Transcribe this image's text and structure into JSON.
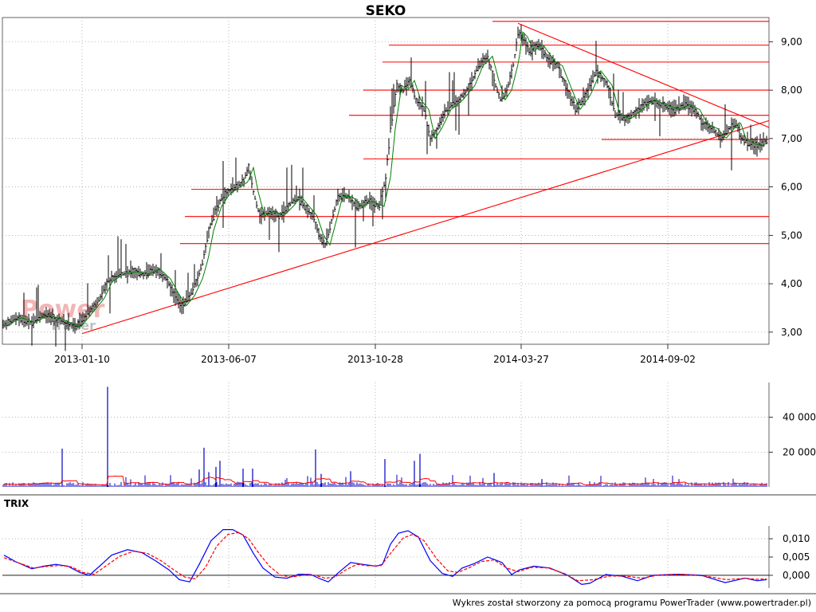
{
  "chart_data": [
    {
      "type": "line",
      "subtype": "price-bars",
      "title": "SEKO",
      "x_tick_labels": [
        "2013-01-10",
        "2013-06-07",
        "2013-10-28",
        "2014-03-27",
        "2014-09-02"
      ],
      "y_tick_labels": [
        "3,00",
        "4,00",
        "5,00",
        "6,00",
        "7,00",
        "8,00",
        "9,00"
      ],
      "ylim": [
        2.75,
        9.5
      ],
      "grid": true,
      "price_path": [
        [
          0,
          3.1
        ],
        [
          20,
          3.3
        ],
        [
          38,
          3.2
        ],
        [
          55,
          3.35
        ],
        [
          75,
          3.25
        ],
        [
          95,
          3.1
        ],
        [
          105,
          3.3
        ],
        [
          115,
          3.5
        ],
        [
          125,
          3.7
        ],
        [
          135,
          4.05
        ],
        [
          150,
          4.2
        ],
        [
          165,
          4.25
        ],
        [
          180,
          4.2
        ],
        [
          195,
          4.3
        ],
        [
          208,
          4.1
        ],
        [
          218,
          3.8
        ],
        [
          228,
          3.55
        ],
        [
          238,
          3.75
        ],
        [
          248,
          4.1
        ],
        [
          255,
          4.5
        ],
        [
          262,
          5.1
        ],
        [
          272,
          5.6
        ],
        [
          282,
          5.85
        ],
        [
          295,
          6.0
        ],
        [
          305,
          6.1
        ],
        [
          312,
          6.4
        ],
        [
          318,
          5.9
        ],
        [
          326,
          5.4
        ],
        [
          338,
          5.5
        ],
        [
          350,
          5.4
        ],
        [
          362,
          5.6
        ],
        [
          372,
          5.8
        ],
        [
          382,
          5.6
        ],
        [
          392,
          5.4
        ],
        [
          400,
          5.0
        ],
        [
          408,
          4.8
        ],
        [
          416,
          5.3
        ],
        [
          424,
          5.8
        ],
        [
          436,
          5.8
        ],
        [
          448,
          5.6
        ],
        [
          462,
          5.7
        ],
        [
          476,
          5.6
        ],
        [
          484,
          6.2
        ],
        [
          490,
          7.2
        ],
        [
          498,
          8.1
        ],
        [
          506,
          8.0
        ],
        [
          514,
          8.2
        ],
        [
          522,
          7.8
        ],
        [
          532,
          7.6
        ],
        [
          540,
          7.0
        ],
        [
          548,
          7.2
        ],
        [
          560,
          7.6
        ],
        [
          575,
          7.8
        ],
        [
          590,
          8.1
        ],
        [
          600,
          8.5
        ],
        [
          612,
          8.7
        ],
        [
          620,
          8.2
        ],
        [
          628,
          7.8
        ],
        [
          636,
          8.0
        ],
        [
          645,
          8.6
        ],
        [
          650,
          9.2
        ],
        [
          656,
          9.1
        ],
        [
          664,
          8.8
        ],
        [
          675,
          8.95
        ],
        [
          690,
          8.6
        ],
        [
          700,
          8.5
        ],
        [
          712,
          8.0
        ],
        [
          722,
          7.6
        ],
        [
          735,
          7.9
        ],
        [
          748,
          8.4
        ],
        [
          762,
          8.1
        ],
        [
          772,
          7.5
        ],
        [
          785,
          7.4
        ],
        [
          800,
          7.6
        ],
        [
          815,
          7.8
        ],
        [
          830,
          7.7
        ],
        [
          845,
          7.6
        ],
        [
          860,
          7.7
        ],
        [
          872,
          7.6
        ],
        [
          882,
          7.3
        ],
        [
          895,
          7.2
        ],
        [
          905,
          7.0
        ],
        [
          915,
          7.2
        ],
        [
          923,
          7.35
        ],
        [
          930,
          7.0
        ],
        [
          940,
          6.9
        ],
        [
          950,
          6.85
        ],
        [
          962,
          6.95
        ]
      ],
      "horizontal_levels": [
        {
          "value": 9.42,
          "x_start": 618
        },
        {
          "value": 8.93,
          "x_start": 488
        },
        {
          "value": 8.58,
          "x_start": 480
        },
        {
          "value": 8.0,
          "x_start": 456
        },
        {
          "value": 7.48,
          "x_start": 438
        },
        {
          "value": 6.98,
          "x_start": 755
        },
        {
          "value": 6.58,
          "x_start": 456
        },
        {
          "value": 5.95,
          "x_start": 240
        },
        {
          "value": 5.39,
          "x_start": 232
        },
        {
          "value": 4.83,
          "x_start": 226
        }
      ],
      "trendlines": [
        {
          "x1": 103,
          "y1": 2.97,
          "x2": 965,
          "y2": 7.37
        },
        {
          "x1": 650,
          "y1": 9.38,
          "x2": 965,
          "y2": 7.23
        }
      ],
      "price_color": "#000000",
      "moving_average_color": "#008000",
      "level_color": "#ff0000"
    },
    {
      "type": "bar",
      "subtype": "volume",
      "y_tick_labels": [
        "20 000",
        "40 000"
      ],
      "ylim": [
        0,
        60000
      ],
      "bar_color": "#0000c0",
      "average_color": "#ff0000",
      "spikes": [
        {
          "x": 135,
          "value": 57500
        },
        {
          "x": 78,
          "value": 22000
        },
        {
          "x": 256,
          "value": 22500
        },
        {
          "x": 396,
          "value": 21500
        },
        {
          "x": 527,
          "value": 19000
        },
        {
          "x": 520,
          "value": 15000
        },
        {
          "x": 483,
          "value": 16000
        },
        {
          "x": 276,
          "value": 15000
        },
        {
          "x": 271,
          "value": 11500
        },
        {
          "x": 305,
          "value": 10500
        },
        {
          "x": 317,
          "value": 10500
        },
        {
          "x": 250,
          "value": 10000
        },
        {
          "x": 440,
          "value": 9000
        },
        {
          "x": 262,
          "value": 8500
        },
        {
          "x": 403,
          "value": 7500
        },
        {
          "x": 620,
          "value": 8000
        },
        {
          "x": 680,
          "value": 4500
        }
      ]
    },
    {
      "type": "line",
      "subtype": "trix",
      "title": "TRIX",
      "y_tick_labels": [
        "0,000",
        "0,005",
        "0,010"
      ],
      "ylim": [
        -0.0035,
        0.0135
      ],
      "series": [
        {
          "color": "#0000ff",
          "points": [
            [
              5,
              0.0055
            ],
            [
              20,
              0.0037
            ],
            [
              40,
              0.0018
            ],
            [
              55,
              0.0025
            ],
            [
              70,
              0.003
            ],
            [
              85,
              0.0025
            ],
            [
              100,
              0.0008
            ],
            [
              112,
              0.0
            ],
            [
              125,
              0.0025
            ],
            [
              140,
              0.0055
            ],
            [
              160,
              0.007
            ],
            [
              178,
              0.0062
            ],
            [
              195,
              0.004
            ],
            [
              212,
              0.0015
            ],
            [
              225,
              -0.0012
            ],
            [
              238,
              -0.0018
            ],
            [
              250,
              0.003
            ],
            [
              265,
              0.0095
            ],
            [
              280,
              0.0125
            ],
            [
              292,
              0.0125
            ],
            [
              305,
              0.011
            ],
            [
              318,
              0.006
            ],
            [
              330,
              0.002
            ],
            [
              345,
              -0.0005
            ],
            [
              360,
              -0.0008
            ],
            [
              375,
              0.0003
            ],
            [
              390,
              0.0002
            ],
            [
              402,
              -0.001
            ],
            [
              412,
              -0.0018
            ],
            [
              425,
              0.0008
            ],
            [
              440,
              0.0035
            ],
            [
              455,
              0.003
            ],
            [
              472,
              0.0025
            ],
            [
              480,
              0.003
            ],
            [
              490,
              0.0085
            ],
            [
              500,
              0.0115
            ],
            [
              512,
              0.0122
            ],
            [
              525,
              0.0105
            ],
            [
              540,
              0.004
            ],
            [
              555,
              0.0005
            ],
            [
              568,
              -0.0003
            ],
            [
              580,
              0.002
            ],
            [
              595,
              0.0032
            ],
            [
              612,
              0.005
            ],
            [
              630,
              0.0035
            ],
            [
              642,
              0.0002
            ],
            [
              652,
              0.0015
            ],
            [
              670,
              0.0025
            ],
            [
              690,
              0.002
            ],
            [
              712,
              0.0
            ],
            [
              730,
              -0.0025
            ],
            [
              740,
              -0.0022
            ],
            [
              760,
              0.0002
            ],
            [
              780,
              -0.0002
            ],
            [
              800,
              -0.0015
            ],
            [
              820,
              0.0
            ],
            [
              850,
              0.0003
            ],
            [
              880,
              0.0
            ],
            [
              910,
              -0.002
            ],
            [
              935,
              -0.0008
            ],
            [
              950,
              -0.0015
            ],
            [
              962,
              -0.0012
            ]
          ]
        },
        {
          "color": "#ff0000",
          "points": [
            [
              5,
              0.0048
            ],
            [
              22,
              0.0035
            ],
            [
              42,
              0.002
            ],
            [
              58,
              0.0024
            ],
            [
              75,
              0.0027
            ],
            [
              90,
              0.0023
            ],
            [
              104,
              0.0008
            ],
            [
              118,
              0.0003
            ],
            [
              132,
              0.0024
            ],
            [
              150,
              0.0052
            ],
            [
              168,
              0.0066
            ],
            [
              185,
              0.006
            ],
            [
              202,
              0.004
            ],
            [
              218,
              0.0015
            ],
            [
              232,
              -0.0005
            ],
            [
              245,
              -0.001
            ],
            [
              258,
              0.0022
            ],
            [
              272,
              0.008
            ],
            [
              286,
              0.0112
            ],
            [
              300,
              0.0117
            ],
            [
              312,
              0.01
            ],
            [
              325,
              0.006
            ],
            [
              338,
              0.0025
            ],
            [
              352,
              0.0
            ],
            [
              366,
              -0.0005
            ],
            [
              380,
              0.0
            ],
            [
              395,
              0.0
            ],
            [
              408,
              -0.0008
            ],
            [
              420,
              -0.0005
            ],
            [
              434,
              0.0015
            ],
            [
              448,
              0.003
            ],
            [
              462,
              0.0026
            ],
            [
              478,
              0.0026
            ],
            [
              492,
              0.0065
            ],
            [
              506,
              0.0102
            ],
            [
              518,
              0.0112
            ],
            [
              532,
              0.0095
            ],
            [
              548,
              0.0045
            ],
            [
              562,
              0.0012
            ],
            [
              575,
              0.0008
            ],
            [
              590,
              0.0022
            ],
            [
              605,
              0.0038
            ],
            [
              620,
              0.0042
            ],
            [
              636,
              0.002
            ],
            [
              650,
              0.001
            ],
            [
              668,
              0.0022
            ],
            [
              688,
              0.002
            ],
            [
              708,
              0.0005
            ],
            [
              725,
              -0.0015
            ],
            [
              745,
              -0.0012
            ],
            [
              765,
              -0.0002
            ],
            [
              785,
              -0.0002
            ],
            [
              805,
              -0.0008
            ],
            [
              825,
              0.0
            ],
            [
              855,
              0.0003
            ],
            [
              885,
              -0.0002
            ],
            [
              912,
              -0.0012
            ],
            [
              935,
              -0.0008
            ],
            [
              950,
              -0.0011
            ],
            [
              962,
              -0.001
            ]
          ]
        }
      ],
      "zero_line": 0
    }
  ],
  "watermark": {
    "line1": "Power",
    "line2": "Trader"
  },
  "footer": "Wykres został stworzony za pomocą programu PowerTrader (www.powertrader.pl)",
  "colors": {
    "grid": "#888888",
    "border": "#000000",
    "background": "#ffffff"
  }
}
